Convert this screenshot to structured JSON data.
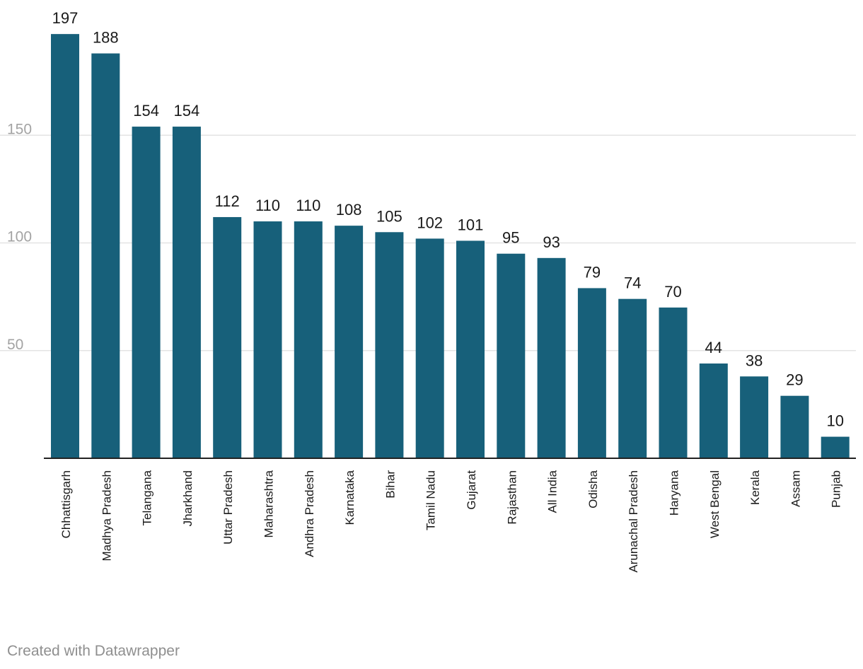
{
  "chart_data": {
    "type": "bar",
    "title": "",
    "xlabel": "",
    "ylabel": "",
    "ylim": [
      0,
      210
    ],
    "yticks": [
      50,
      100,
      150
    ],
    "grid": true,
    "bar_color": "#17607a",
    "categories": [
      "Chhattisgarh",
      "Madhya Pradesh",
      "Telangana",
      "Jharkhand",
      "Uttar Pradesh",
      "Maharashtra",
      "Andhra Pradesh",
      "Karnataka",
      "Bihar",
      "Tamil Nadu",
      "Gujarat",
      "Rajasthan",
      "All India",
      "Odisha",
      "Arunachal Pradesh",
      "Haryana",
      "West Bengal",
      "Kerala",
      "Assam",
      "Punjab"
    ],
    "values": [
      197,
      188,
      154,
      154,
      112,
      110,
      110,
      108,
      105,
      102,
      101,
      95,
      93,
      79,
      74,
      70,
      44,
      38,
      29,
      10
    ]
  },
  "footer": {
    "credit": "Created with Datawrapper"
  }
}
